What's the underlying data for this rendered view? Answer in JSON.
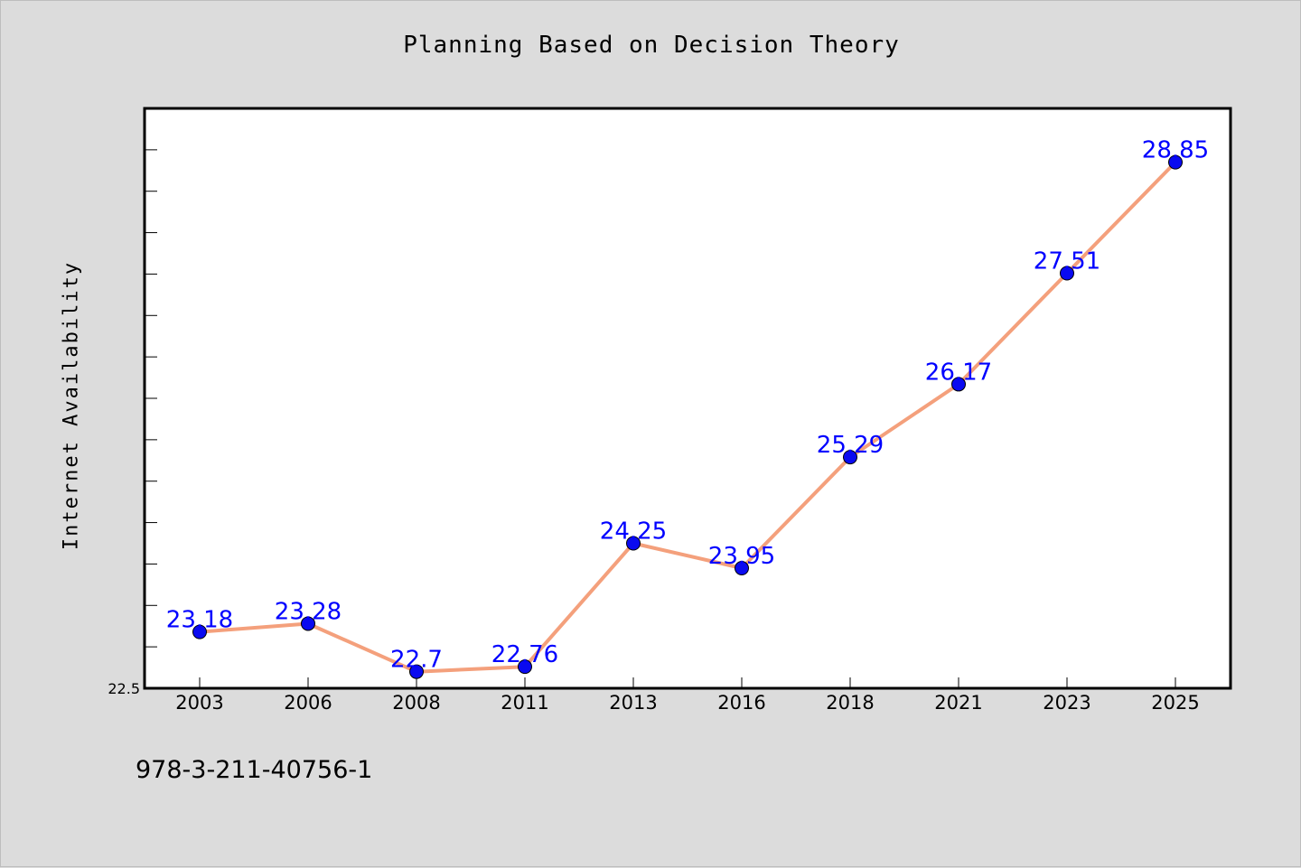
{
  "footer": {
    "code": "978-3-211-40756-1"
  },
  "colors": {
    "line": "#f4a07c",
    "marker": "#0a0af0",
    "label": "#0000ff",
    "background": "#dcdcdc",
    "plot_bg": "#ffffff"
  },
  "chart_data": {
    "type": "line",
    "title": "Planning Based on Decision Theory",
    "xlabel": "",
    "ylabel": "Internet Availability",
    "categories": [
      "2003",
      "2006",
      "2008",
      "2011",
      "2013",
      "2016",
      "2018",
      "2021",
      "2023",
      "2025"
    ],
    "series": [
      {
        "values": [
          23.18,
          23.28,
          22.7,
          22.76,
          24.25,
          23.95,
          25.29,
          26.17,
          27.51,
          28.85
        ]
      }
    ],
    "data_labels": [
      "23.18",
      "23.28",
      "22.7",
      "22.76",
      "24.25",
      "23.95",
      "25.29",
      "26.17",
      "27.51",
      "28.85"
    ],
    "y_tick_label": "22.5",
    "ylim": [
      22.5,
      29.5
    ],
    "grid": false,
    "legend": "none"
  }
}
